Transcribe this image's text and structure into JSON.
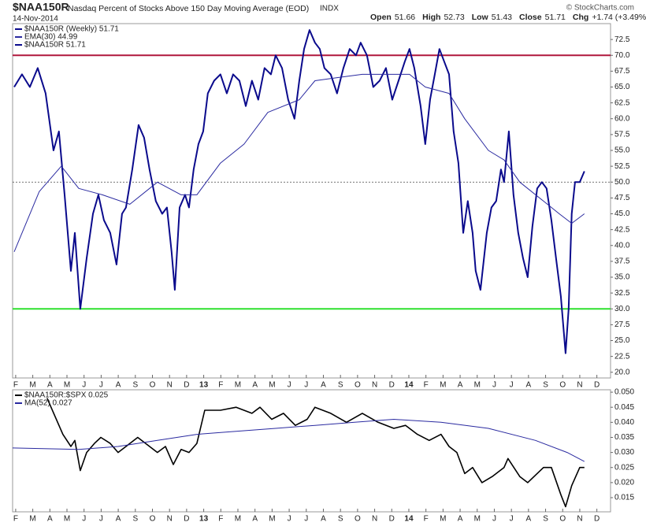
{
  "header": {
    "symbol": "$NAA150R",
    "description": "Nasdaq Percent of Stocks Above 150 Day Moving Average (EOD)",
    "exchange": "INDX",
    "date": "14-Nov-2014",
    "credit": "© StockCharts.com",
    "quote": [
      {
        "label": "Open",
        "value": "51.66"
      },
      {
        "label": "High",
        "value": "52.73"
      },
      {
        "label": "Low",
        "value": "51.43"
      },
      {
        "label": "Close",
        "value": "51.71"
      },
      {
        "label": "Chg",
        "value": "+1.74 (+3.49%)"
      }
    ]
  },
  "chart_data": [
    {
      "type": "line",
      "legend_note": "$NAA150R 51.71",
      "xlim": [
        -0.18,
        34.8
      ],
      "ylim": [
        19.1,
        75
      ],
      "xticks": [
        {
          "value": 0,
          "label": "F"
        },
        {
          "value": 1,
          "label": "M"
        },
        {
          "value": 2,
          "label": "A"
        },
        {
          "value": 3,
          "label": "M"
        },
        {
          "value": 4,
          "label": "J"
        },
        {
          "value": 5,
          "label": "J"
        },
        {
          "value": 6,
          "label": "A"
        },
        {
          "value": 7,
          "label": "S"
        },
        {
          "value": 8,
          "label": "O"
        },
        {
          "value": 9,
          "label": "N"
        },
        {
          "value": 10,
          "label": "D"
        },
        {
          "value": 11,
          "label": "13"
        },
        {
          "value": 12,
          "label": "F"
        },
        {
          "value": 13,
          "label": "M"
        },
        {
          "value": 14,
          "label": "A"
        },
        {
          "value": 15,
          "label": "M"
        },
        {
          "value": 16,
          "label": "J"
        },
        {
          "value": 17,
          "label": "J"
        },
        {
          "value": 18,
          "label": "A"
        },
        {
          "value": 19,
          "label": "S"
        },
        {
          "value": 20,
          "label": "O"
        },
        {
          "value": 21,
          "label": "N"
        },
        {
          "value": 22,
          "label": "D"
        },
        {
          "value": 23,
          "label": "14"
        },
        {
          "value": 24,
          "label": "F"
        },
        {
          "value": 25,
          "label": "M"
        },
        {
          "value": 26,
          "label": "A"
        },
        {
          "value": 27,
          "label": "M"
        },
        {
          "value": 28,
          "label": "J"
        },
        {
          "value": 29,
          "label": "J"
        },
        {
          "value": 30,
          "label": "A"
        },
        {
          "value": 31,
          "label": "S"
        },
        {
          "value": 32,
          "label": "O"
        },
        {
          "value": 33,
          "label": "N"
        },
        {
          "value": 34,
          "label": "D"
        }
      ],
      "yticks": [
        {
          "value": 20,
          "label": "20.0"
        },
        22.5,
        {
          "value": 25,
          "label": "25.0"
        },
        27.5,
        {
          "value": 30,
          "label": "30.0"
        },
        32.5,
        {
          "value": 35,
          "label": "35.0"
        },
        37.5,
        {
          "value": 40,
          "label": "40.0"
        },
        42.5,
        {
          "value": 45,
          "label": "45.0"
        },
        47.5,
        {
          "value": 50,
          "label": "50.0"
        },
        52.5,
        {
          "value": 55,
          "label": "55.0"
        },
        57.5,
        {
          "value": 60,
          "label": "60.0"
        },
        62.5,
        {
          "value": 65,
          "label": "65.0"
        },
        67.5,
        {
          "value": 70,
          "label": "70.0"
        },
        72.5
      ],
      "hlines": [
        {
          "value": 70,
          "color": "#b0173c",
          "dash": false
        },
        {
          "value": 30,
          "color": "#2ee02e",
          "dash": false
        },
        {
          "value": 50,
          "color": "#444444",
          "dash": true
        }
      ],
      "series": [
        {
          "name": "$NAA150R (Weekly) 51.71",
          "color": "#0a0a8c",
          "width": 2,
          "x": [
            -0.09,
            0.37,
            0.83,
            1.29,
            1.75,
            2.21,
            2.53,
            2.86,
            3.23,
            3.46,
            3.78,
            4.15,
            4.52,
            4.84,
            5.16,
            5.53,
            5.9,
            6.22,
            6.45,
            6.82,
            7.19,
            7.51,
            7.83,
            8.2,
            8.57,
            8.85,
            9.12,
            9.31,
            9.59,
            9.91,
            10.14,
            10.41,
            10.69,
            10.97,
            11.24,
            11.61,
            11.98,
            12.35,
            12.72,
            13.09,
            13.46,
            13.82,
            14.19,
            14.56,
            14.93,
            15.21,
            15.58,
            15.94,
            16.31,
            16.59,
            16.87,
            17.19,
            17.51,
            17.79,
            18.06,
            18.43,
            18.8,
            19.17,
            19.54,
            19.91,
            20.18,
            20.55,
            20.92,
            21.29,
            21.66,
            22.03,
            22.4,
            22.76,
            23.04,
            23.32,
            23.69,
            23.96,
            24.24,
            24.52,
            24.79,
            25.07,
            25.35,
            25.62,
            25.9,
            26.18,
            26.45,
            26.73,
            26.91,
            27.19,
            27.56,
            27.83,
            28.11,
            28.39,
            28.57,
            28.85,
            29.12,
            29.4,
            29.68,
            29.95,
            30.23,
            30.51,
            30.78,
            31.06,
            31.34,
            31.61,
            31.89,
            32.17,
            32.35,
            32.53,
            32.72,
            33.0,
            33.27
          ],
          "values": [
            65,
            67,
            65,
            68,
            64,
            55,
            58,
            48,
            36,
            42,
            30,
            38,
            45,
            48,
            44,
            42,
            37,
            45,
            46,
            52,
            59,
            57,
            52,
            47,
            45,
            46,
            39,
            33,
            46,
            48,
            46,
            52,
            56,
            58,
            64,
            66,
            67,
            64,
            67,
            66,
            62,
            66,
            63,
            68,
            67,
            70,
            68,
            63,
            60,
            66,
            71,
            74,
            72,
            71,
            68,
            67,
            64,
            68,
            71,
            70,
            72,
            70,
            65,
            66,
            68,
            63,
            66,
            69,
            71,
            68,
            62,
            56,
            63,
            67,
            71,
            69,
            67,
            58,
            53,
            42,
            47,
            42,
            36,
            33,
            42,
            46,
            47,
            52,
            50,
            58,
            48,
            42,
            38,
            35,
            43,
            49,
            50,
            49,
            44,
            38,
            32,
            23,
            30,
            45,
            50,
            50,
            51.71
          ]
        },
        {
          "name": "EMA(30) 44.99",
          "color": "#2a2aa0",
          "width": 1,
          "x": [
            -0.09,
            1.38,
            2.67,
            3.69,
            5.07,
            6.68,
            8.29,
            9.68,
            10.6,
            11.98,
            13.36,
            14.75,
            16.59,
            17.51,
            18.89,
            20.28,
            21.66,
            23.04,
            23.96,
            25.35,
            26.27,
            27.65,
            28.57,
            29.49,
            30.88,
            31.8,
            32.53,
            33.27
          ],
          "values": [
            39,
            48.5,
            52.5,
            49,
            48,
            46.5,
            50,
            48,
            48,
            53,
            56,
            61,
            63,
            66,
            66.5,
            67,
            67,
            67,
            65,
            64,
            60,
            55,
            53.5,
            50,
            47,
            45,
            43.5,
            45
          ]
        }
      ]
    },
    {
      "type": "line",
      "xlim": [
        -0.18,
        34.8
      ],
      "ylim": [
        0.0103,
        0.0508
      ],
      "xticks": [
        {
          "value": 0,
          "label": "F"
        },
        {
          "value": 1,
          "label": "M"
        },
        {
          "value": 2,
          "label": "A"
        },
        {
          "value": 3,
          "label": "M"
        },
        {
          "value": 4,
          "label": "J"
        },
        {
          "value": 5,
          "label": "J"
        },
        {
          "value": 6,
          "label": "A"
        },
        {
          "value": 7,
          "label": "S"
        },
        {
          "value": 8,
          "label": "O"
        },
        {
          "value": 9,
          "label": "N"
        },
        {
          "value": 10,
          "label": "D"
        },
        {
          "value": 11,
          "label": "13"
        },
        {
          "value": 12,
          "label": "F"
        },
        {
          "value": 13,
          "label": "M"
        },
        {
          "value": 14,
          "label": "A"
        },
        {
          "value": 15,
          "label": "M"
        },
        {
          "value": 16,
          "label": "J"
        },
        {
          "value": 17,
          "label": "J"
        },
        {
          "value": 18,
          "label": "A"
        },
        {
          "value": 19,
          "label": "S"
        },
        {
          "value": 20,
          "label": "O"
        },
        {
          "value": 21,
          "label": "N"
        },
        {
          "value": 22,
          "label": "D"
        },
        {
          "value": 23,
          "label": "14"
        },
        {
          "value": 24,
          "label": "F"
        },
        {
          "value": 25,
          "label": "M"
        },
        {
          "value": 26,
          "label": "A"
        },
        {
          "value": 27,
          "label": "M"
        },
        {
          "value": 28,
          "label": "J"
        },
        {
          "value": 29,
          "label": "J"
        },
        {
          "value": 30,
          "label": "A"
        },
        {
          "value": 31,
          "label": "S"
        },
        {
          "value": 32,
          "label": "O"
        },
        {
          "value": 33,
          "label": "N"
        },
        {
          "value": 34,
          "label": "D"
        }
      ],
      "yticks": [
        {
          "value": 0.015,
          "label": "0.015"
        },
        {
          "value": 0.02,
          "label": "0.020"
        },
        {
          "value": 0.025,
          "label": "0.025"
        },
        {
          "value": 0.03,
          "label": "0.030"
        },
        {
          "value": 0.035,
          "label": "0.035"
        },
        {
          "value": 0.04,
          "label": "0.040"
        },
        {
          "value": 0.045,
          "label": "0.045"
        },
        {
          "value": 0.05,
          "label": "0.050"
        }
      ],
      "series": [
        {
          "name": "$NAA150R:$SPX 0.025",
          "color": "#000000",
          "width": 1.6,
          "x": [
            1.84,
            2.76,
            3.23,
            3.46,
            3.78,
            4.15,
            4.61,
            4.98,
            5.53,
            5.99,
            6.45,
            7.14,
            7.6,
            8.29,
            8.76,
            9.22,
            9.68,
            10.14,
            10.6,
            11.06,
            11.98,
            12.9,
            13.82,
            14.29,
            14.98,
            15.67,
            16.36,
            17.05,
            17.51,
            18.43,
            19.35,
            20.28,
            21.2,
            22.12,
            22.81,
            23.5,
            24.19,
            24.88,
            25.35,
            25.81,
            26.27,
            26.73,
            27.28,
            27.88,
            28.57,
            28.8,
            29.49,
            29.95,
            30.88,
            31.34,
            31.89,
            32.17,
            32.53,
            33.0,
            33.27
          ],
          "values": [
            0.048,
            0.036,
            0.032,
            0.034,
            0.024,
            0.03,
            0.033,
            0.035,
            0.033,
            0.03,
            0.032,
            0.035,
            0.033,
            0.03,
            0.032,
            0.026,
            0.031,
            0.03,
            0.033,
            0.044,
            0.044,
            0.045,
            0.043,
            0.045,
            0.041,
            0.043,
            0.039,
            0.041,
            0.045,
            0.043,
            0.04,
            0.043,
            0.04,
            0.038,
            0.039,
            0.036,
            0.034,
            0.036,
            0.032,
            0.03,
            0.023,
            0.025,
            0.02,
            0.022,
            0.025,
            0.028,
            0.022,
            0.02,
            0.025,
            0.025,
            0.016,
            0.012,
            0.019,
            0.025,
            0.025
          ]
        },
        {
          "name": "MA(52) 0.027",
          "color": "#2a2aa0",
          "width": 1,
          "x": [
            -0.18,
            3.69,
            5.99,
            8.29,
            10.6,
            12.9,
            15.21,
            17.51,
            19.82,
            22.12,
            24.88,
            27.65,
            30.41,
            32.26,
            33.27
          ],
          "values": [
            0.0315,
            0.031,
            0.032,
            0.034,
            0.036,
            0.037,
            0.038,
            0.039,
            0.04,
            0.041,
            0.04,
            0.038,
            0.034,
            0.03,
            0.027
          ]
        }
      ]
    }
  ]
}
